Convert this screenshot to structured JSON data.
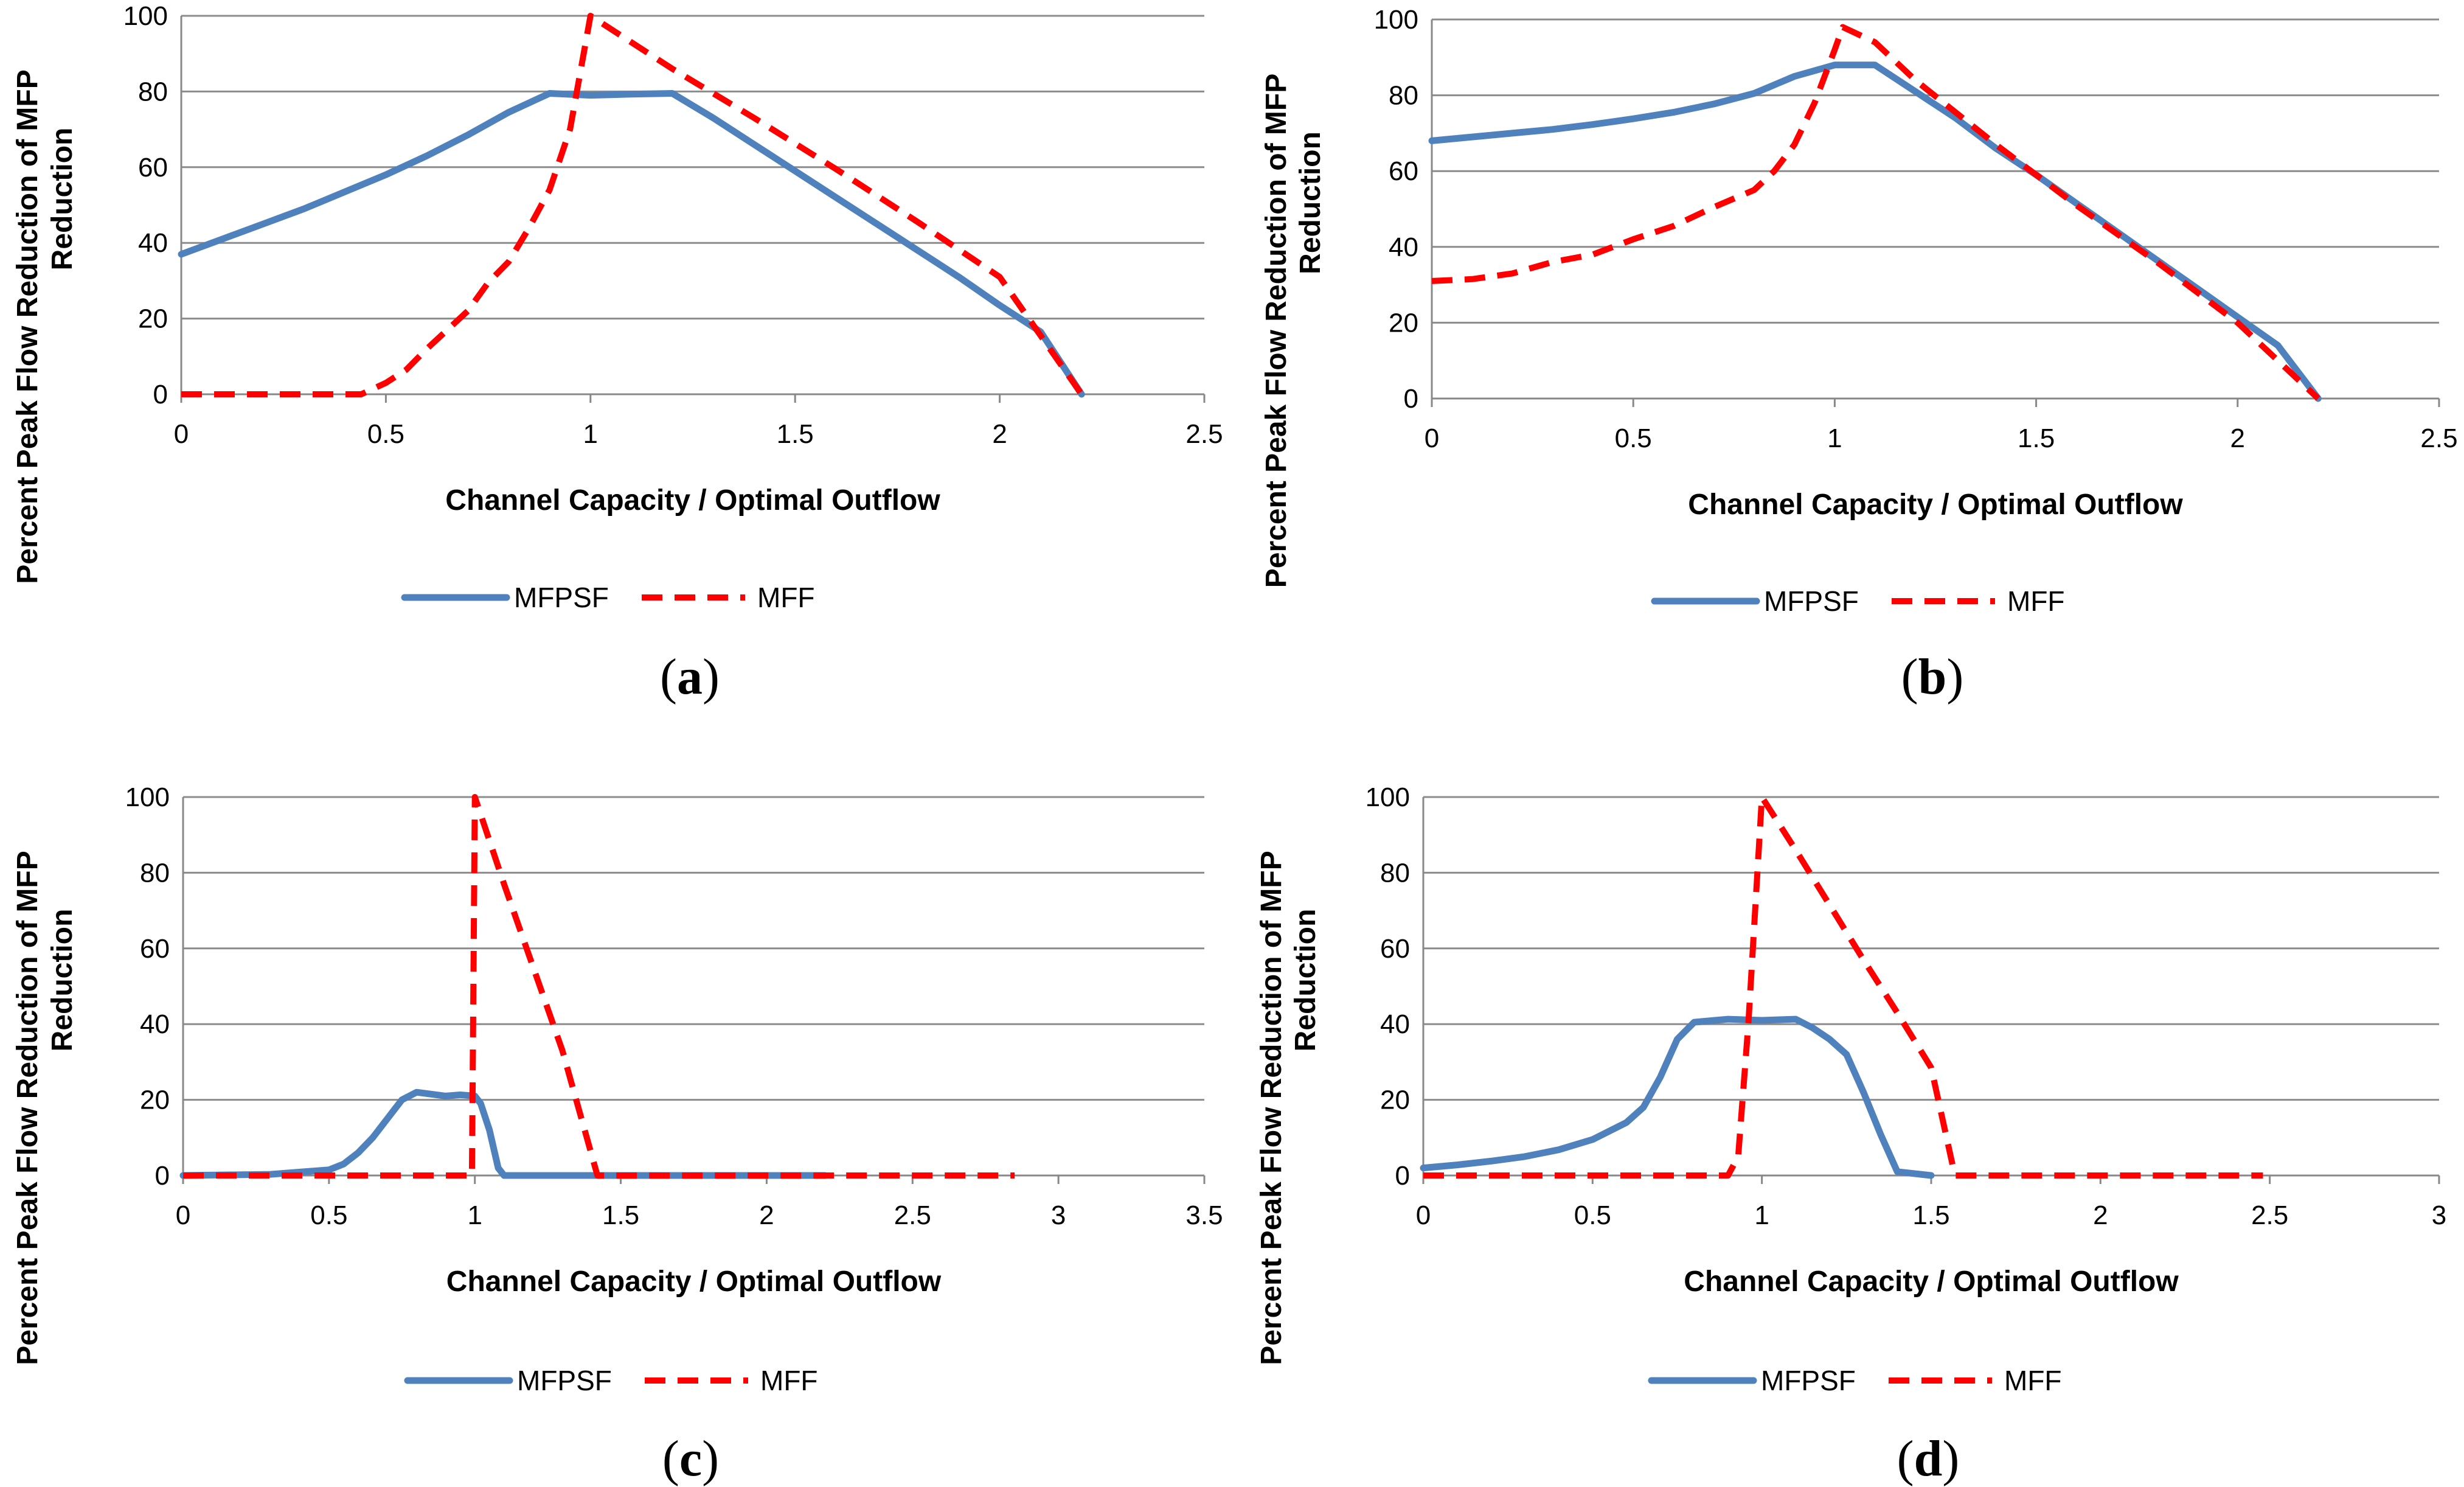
{
  "colors": {
    "mfpsf": "#4F81BD",
    "mff": "#FF0000",
    "grid": "#8C8C8C",
    "axis": "#888888"
  },
  "chart_data": [
    {
      "type": "line",
      "panel_label": "a",
      "xlabel": "Channel Capacity / Optimal Outflow",
      "ylabel": [
        "Percent Peak Flow Reduction of MFP",
        "Reduction"
      ],
      "xlim": [
        0,
        2.5
      ],
      "ylim": [
        0,
        100
      ],
      "xticks": [
        0,
        0.5,
        1,
        1.5,
        2,
        2.5
      ],
      "xtick_labels": [
        "0",
        "0.5",
        "1",
        "1.5",
        "2",
        "2.5"
      ],
      "yticks": [
        0,
        20,
        40,
        60,
        80,
        100
      ],
      "ytick_labels": [
        "0",
        "20",
        "40",
        "60",
        "80",
        "100"
      ],
      "legend": [
        "MFPSF",
        "MFF"
      ],
      "series": [
        {
          "name": "MFPSF",
          "style": "solid",
          "x": [
            0,
            0.1,
            0.2,
            0.3,
            0.4,
            0.5,
            0.6,
            0.7,
            0.8,
            0.9,
            1.0,
            1.1,
            1.2,
            1.3,
            1.4,
            1.5,
            1.6,
            1.7,
            1.8,
            1.9,
            2.0,
            2.1,
            2.2
          ],
          "y": [
            37,
            41,
            45,
            49,
            53.5,
            58,
            63,
            68.5,
            74.5,
            79.5,
            79,
            79.3,
            79.5,
            73,
            66,
            59,
            52,
            45,
            38,
            31,
            23.5,
            16.5,
            0
          ]
        },
        {
          "name": "MFF",
          "style": "dashed",
          "x": [
            0,
            0.2,
            0.44,
            0.5,
            0.55,
            0.6,
            0.65,
            0.7,
            0.75,
            0.8,
            0.85,
            0.9,
            0.95,
            1.0,
            1.2,
            1.4,
            1.6,
            1.8,
            2.0,
            2.2
          ],
          "y": [
            0,
            0,
            0,
            3,
            6.5,
            12,
            17,
            22,
            29.5,
            35,
            44,
            54,
            70,
            100,
            86,
            73,
            59.5,
            45.5,
            31,
            0
          ]
        }
      ]
    },
    {
      "type": "line",
      "panel_label": "b",
      "xlabel": "Channel Capacity / Optimal Outflow",
      "ylabel": [
        "Percent Peak Flow Reduction of MFP",
        "Reduction"
      ],
      "xlim": [
        0,
        2.5
      ],
      "ylim": [
        0,
        100
      ],
      "xticks": [
        0,
        0.5,
        1,
        1.5,
        2,
        2.5
      ],
      "xtick_labels": [
        "0",
        "0.5",
        "1",
        "1.5",
        "2",
        "2.5"
      ],
      "yticks": [
        0,
        20,
        40,
        60,
        80,
        100
      ],
      "ytick_labels": [
        "0",
        "20",
        "40",
        "60",
        "80",
        "100"
      ],
      "legend": [
        "MFPSF",
        "MFF"
      ],
      "series": [
        {
          "name": "MFPSF",
          "style": "solid",
          "x": [
            0,
            0.1,
            0.2,
            0.3,
            0.4,
            0.5,
            0.6,
            0.7,
            0.8,
            0.9,
            1.0,
            1.1,
            1.2,
            1.3,
            1.4,
            1.5,
            1.6,
            1.7,
            1.8,
            1.9,
            2.0,
            2.1,
            2.2
          ],
          "y": [
            68,
            69,
            70,
            71,
            72.3,
            73.8,
            75.5,
            77.7,
            80.5,
            85,
            88,
            88,
            81,
            74,
            66,
            59,
            51.5,
            44,
            36.5,
            29,
            21.5,
            14,
            0
          ]
        },
        {
          "name": "MFF",
          "style": "dashed",
          "x": [
            0,
            0.1,
            0.2,
            0.3,
            0.4,
            0.5,
            0.6,
            0.7,
            0.8,
            0.85,
            0.9,
            0.95,
            1.0,
            1.02,
            1.1,
            1.2,
            1.4,
            1.6,
            1.8,
            2.0,
            2.2
          ],
          "y": [
            31,
            31.5,
            33,
            36,
            38,
            42,
            45.5,
            50.5,
            55,
            60,
            67,
            78,
            92,
            98,
            94,
            84,
            67,
            51,
            36,
            20,
            0
          ]
        }
      ]
    },
    {
      "type": "line",
      "panel_label": "c",
      "xlabel": "Channel Capacity / Optimal Outflow",
      "ylabel": [
        "Percent Peak Flow Reduction of MFP",
        "Reduction"
      ],
      "xlim": [
        0,
        3.5
      ],
      "ylim": [
        0,
        100
      ],
      "xticks": [
        0,
        0.5,
        1,
        1.5,
        2,
        2.5,
        3,
        3.5
      ],
      "xtick_labels": [
        "0",
        "0.5",
        "1",
        "1.5",
        "2",
        "2.5",
        "3",
        "3.5"
      ],
      "yticks": [
        0,
        20,
        40,
        60,
        80,
        100
      ],
      "ytick_labels": [
        "0",
        "20",
        "40",
        "60",
        "80",
        "100"
      ],
      "legend": [
        "MFPSF",
        "MFF"
      ],
      "series": [
        {
          "name": "MFPSF",
          "style": "solid",
          "x": [
            0,
            0.3,
            0.5,
            0.55,
            0.6,
            0.65,
            0.7,
            0.75,
            0.8,
            0.85,
            0.9,
            0.95,
            1.0,
            1.02,
            1.05,
            1.08,
            1.1,
            1.2,
            1.5,
            2.0,
            2.2
          ],
          "y": [
            0,
            0.3,
            1.5,
            3,
            6,
            10,
            15,
            20,
            22,
            21.5,
            21,
            21.3,
            21,
            19,
            12,
            2,
            0,
            0,
            0,
            0,
            0
          ]
        },
        {
          "name": "MFF",
          "style": "dashed",
          "x": [
            0,
            0.5,
            0.99,
            1.0,
            1.1,
            1.2,
            1.3,
            1.42,
            1.5,
            2.0,
            2.5,
            2.85
          ],
          "y": [
            0,
            0,
            0,
            100,
            77,
            55,
            33,
            0,
            0,
            0,
            0,
            0
          ]
        }
      ]
    },
    {
      "type": "line",
      "panel_label": "d",
      "xlabel": "Channel Capacity / Optimal Outflow",
      "ylabel": [
        "Percent Peak Flow Reduction of MFP",
        "Reduction"
      ],
      "xlim": [
        0,
        3
      ],
      "ylim": [
        0,
        100
      ],
      "xticks": [
        0,
        0.5,
        1,
        1.5,
        2,
        2.5,
        3
      ],
      "xtick_labels": [
        "0",
        "0.5",
        "1",
        "1.5",
        "2",
        "2.5",
        "3"
      ],
      "yticks": [
        0,
        20,
        40,
        60,
        80,
        100
      ],
      "ytick_labels": [
        "0",
        "20",
        "40",
        "60",
        "80",
        "100"
      ],
      "legend": [
        "MFPSF",
        "MFF"
      ],
      "series": [
        {
          "name": "MFPSF",
          "style": "solid",
          "x": [
            0,
            0.1,
            0.2,
            0.3,
            0.4,
            0.5,
            0.6,
            0.65,
            0.7,
            0.75,
            0.8,
            0.9,
            1.0,
            1.1,
            1.15,
            1.2,
            1.25,
            1.3,
            1.35,
            1.4,
            1.5
          ],
          "y": [
            2,
            2.8,
            3.8,
            5,
            6.8,
            9.5,
            14,
            18,
            26,
            36,
            40.5,
            41.3,
            41,
            41.3,
            39,
            36,
            32,
            22,
            11,
            1,
            0
          ]
        },
        {
          "name": "MFF",
          "style": "dashed",
          "x": [
            0,
            0.5,
            0.9,
            0.93,
            0.96,
            1.0,
            1.1,
            1.2,
            1.3,
            1.4,
            1.5,
            1.57,
            2.0,
            2.48
          ],
          "y": [
            0,
            0,
            0,
            5,
            40,
            100,
            86,
            71.5,
            57,
            43,
            28.5,
            0,
            0,
            0
          ]
        }
      ]
    }
  ]
}
